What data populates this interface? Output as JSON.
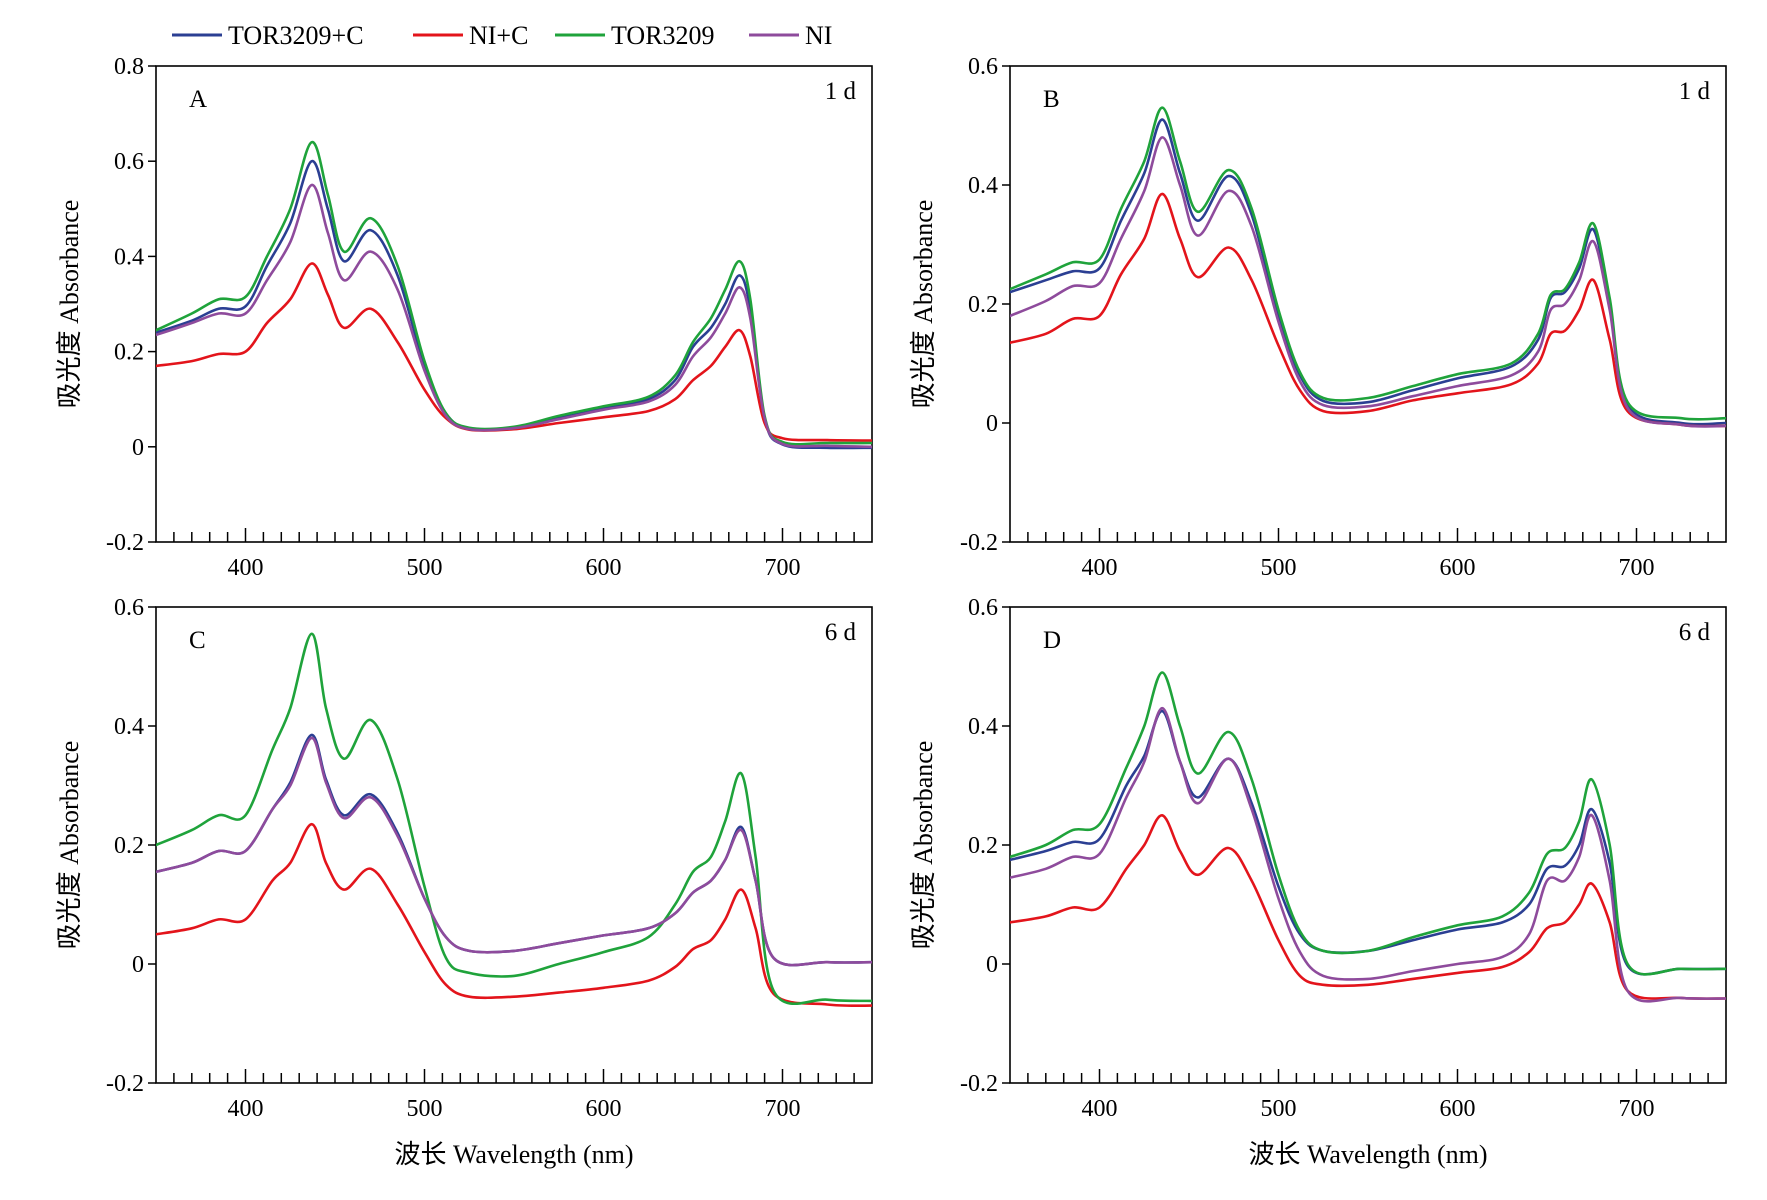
{
  "legend": [
    {
      "name": "TOR3209+C",
      "color": "#2b3f93"
    },
    {
      "name": "NI+C",
      "color": "#e3141b"
    },
    {
      "name": "TOR3209",
      "color": "#1fa33b"
    },
    {
      "name": "NI",
      "color": "#8e4b9c"
    }
  ],
  "chart_data": [
    {
      "type": "line",
      "panel": "A",
      "label": "1 d",
      "xlim": [
        350,
        750
      ],
      "ylim": [
        -0.2,
        0.8
      ],
      "xticks": [
        400,
        500,
        600,
        700
      ],
      "yticks": [
        -0.2,
        0,
        0.2,
        0.4,
        0.6,
        0.8
      ],
      "ytick_labels": [
        "-0.2",
        "0",
        "0.2",
        "0.4",
        "0.6",
        "0.8"
      ],
      "xlabel": "",
      "ylabel": "吸光度 Absorbance",
      "x": [
        350,
        370,
        385,
        400,
        412,
        425,
        437,
        446,
        455,
        470,
        485,
        500,
        512,
        525,
        550,
        575,
        600,
        625,
        640,
        650,
        660,
        668,
        676,
        682,
        690,
        700,
        725,
        750
      ],
      "series": [
        {
          "name": "TOR3209+C",
          "values": [
            0.24,
            0.265,
            0.29,
            0.295,
            0.38,
            0.47,
            0.6,
            0.5,
            0.39,
            0.455,
            0.36,
            0.17,
            0.07,
            0.038,
            0.04,
            0.06,
            0.08,
            0.1,
            0.14,
            0.21,
            0.25,
            0.3,
            0.36,
            0.29,
            0.06,
            0.005,
            -0.002,
            -0.002
          ]
        },
        {
          "name": "NI+C",
          "values": [
            0.17,
            0.18,
            0.195,
            0.2,
            0.26,
            0.31,
            0.385,
            0.32,
            0.25,
            0.29,
            0.22,
            0.12,
            0.06,
            0.036,
            0.037,
            0.05,
            0.062,
            0.075,
            0.1,
            0.14,
            0.17,
            0.21,
            0.245,
            0.19,
            0.05,
            0.018,
            0.014,
            0.013
          ]
        },
        {
          "name": "TOR3209",
          "values": [
            0.245,
            0.28,
            0.31,
            0.315,
            0.4,
            0.5,
            0.64,
            0.53,
            0.41,
            0.48,
            0.38,
            0.18,
            0.07,
            0.04,
            0.042,
            0.065,
            0.085,
            0.105,
            0.15,
            0.22,
            0.27,
            0.33,
            0.39,
            0.31,
            0.065,
            0.01,
            0.008,
            0.008
          ]
        },
        {
          "name": "NI",
          "values": [
            0.235,
            0.26,
            0.28,
            0.28,
            0.35,
            0.43,
            0.55,
            0.45,
            0.35,
            0.41,
            0.33,
            0.16,
            0.065,
            0.037,
            0.039,
            0.058,
            0.078,
            0.095,
            0.13,
            0.19,
            0.23,
            0.28,
            0.335,
            0.27,
            0.06,
            0.006,
            0.002,
            0.0
          ]
        }
      ]
    },
    {
      "type": "line",
      "panel": "B",
      "label": "1 d",
      "xlim": [
        350,
        750
      ],
      "ylim": [
        -0.2,
        0.6
      ],
      "xticks": [
        400,
        500,
        600,
        700
      ],
      "yticks": [
        -0.2,
        0,
        0.2,
        0.4,
        0.6
      ],
      "ytick_labels": [
        "-0.2",
        "0",
        "0.2",
        "0.4",
        "0.6"
      ],
      "xlabel": "",
      "ylabel": "吸光度 Absorbance",
      "x": [
        350,
        370,
        385,
        400,
        412,
        425,
        435,
        445,
        455,
        472,
        485,
        500,
        512,
        525,
        550,
        575,
        600,
        630,
        645,
        652,
        660,
        668,
        676,
        685,
        695,
        725,
        750
      ],
      "series": [
        {
          "name": "TOR3209+C",
          "values": [
            0.22,
            0.24,
            0.255,
            0.26,
            0.34,
            0.42,
            0.51,
            0.42,
            0.34,
            0.415,
            0.35,
            0.18,
            0.08,
            0.037,
            0.035,
            0.055,
            0.075,
            0.095,
            0.14,
            0.21,
            0.22,
            0.26,
            0.325,
            0.2,
            0.03,
            0.0,
            0.0
          ]
        },
        {
          "name": "NI+C",
          "values": [
            0.135,
            0.15,
            0.175,
            0.18,
            0.25,
            0.31,
            0.385,
            0.31,
            0.245,
            0.295,
            0.24,
            0.13,
            0.055,
            0.02,
            0.02,
            0.038,
            0.05,
            0.065,
            0.1,
            0.15,
            0.155,
            0.19,
            0.24,
            0.14,
            0.02,
            -0.003,
            -0.005
          ]
        },
        {
          "name": "TOR3209",
          "values": [
            0.225,
            0.25,
            0.27,
            0.275,
            0.36,
            0.44,
            0.53,
            0.44,
            0.355,
            0.425,
            0.36,
            0.19,
            0.085,
            0.042,
            0.042,
            0.062,
            0.082,
            0.1,
            0.15,
            0.215,
            0.225,
            0.27,
            0.335,
            0.21,
            0.035,
            0.008,
            0.008
          ]
        },
        {
          "name": "NI",
          "values": [
            0.18,
            0.205,
            0.23,
            0.235,
            0.31,
            0.39,
            0.48,
            0.4,
            0.315,
            0.39,
            0.33,
            0.17,
            0.07,
            0.03,
            0.028,
            0.045,
            0.062,
            0.08,
            0.12,
            0.19,
            0.2,
            0.24,
            0.305,
            0.19,
            0.025,
            -0.003,
            -0.005
          ]
        }
      ]
    },
    {
      "type": "line",
      "panel": "C",
      "label": "6 d",
      "xlim": [
        350,
        750
      ],
      "ylim": [
        -0.2,
        0.6
      ],
      "xticks": [
        400,
        500,
        600,
        700
      ],
      "yticks": [
        -0.2,
        0,
        0.2,
        0.4,
        0.6
      ],
      "ytick_labels": [
        "-0.2",
        "0",
        "0.2",
        "0.4",
        "0.6"
      ],
      "xlabel": "波长 Wavelength (nm)",
      "ylabel": "吸光度 Absorbance",
      "x": [
        350,
        370,
        385,
        400,
        415,
        425,
        437,
        445,
        455,
        470,
        485,
        500,
        512,
        525,
        550,
        575,
        600,
        625,
        640,
        650,
        660,
        668,
        677,
        685,
        695,
        725,
        750
      ],
      "series": [
        {
          "name": "TOR3209+C",
          "values": [
            0.155,
            0.17,
            0.19,
            0.19,
            0.26,
            0.305,
            0.385,
            0.31,
            0.25,
            0.285,
            0.22,
            0.11,
            0.045,
            0.022,
            0.022,
            0.035,
            0.048,
            0.06,
            0.085,
            0.12,
            0.14,
            0.175,
            0.23,
            0.14,
            0.01,
            0.003,
            0.003
          ]
        },
        {
          "name": "NI+C",
          "values": [
            0.05,
            0.06,
            0.075,
            0.075,
            0.14,
            0.17,
            0.235,
            0.17,
            0.125,
            0.16,
            0.1,
            0.02,
            -0.035,
            -0.055,
            -0.055,
            -0.048,
            -0.04,
            -0.028,
            -0.005,
            0.025,
            0.04,
            0.075,
            0.125,
            0.06,
            -0.05,
            -0.068,
            -0.07
          ]
        },
        {
          "name": "TOR3209",
          "values": [
            0.2,
            0.225,
            0.25,
            0.25,
            0.36,
            0.43,
            0.555,
            0.43,
            0.345,
            0.41,
            0.31,
            0.13,
            0.01,
            -0.015,
            -0.02,
            0.0,
            0.02,
            0.045,
            0.1,
            0.155,
            0.18,
            0.24,
            0.32,
            0.18,
            -0.045,
            -0.06,
            -0.062
          ]
        },
        {
          "name": "NI",
          "values": [
            0.155,
            0.17,
            0.19,
            0.19,
            0.26,
            0.3,
            0.38,
            0.305,
            0.245,
            0.28,
            0.215,
            0.11,
            0.045,
            0.022,
            0.022,
            0.035,
            0.048,
            0.06,
            0.085,
            0.12,
            0.14,
            0.175,
            0.225,
            0.14,
            0.01,
            0.003,
            0.003
          ]
        }
      ]
    },
    {
      "type": "line",
      "panel": "D",
      "label": "6 d",
      "xlim": [
        350,
        750
      ],
      "ylim": [
        -0.2,
        0.6
      ],
      "xticks": [
        400,
        500,
        600,
        700
      ],
      "yticks": [
        -0.2,
        0,
        0.2,
        0.4,
        0.6
      ],
      "ytick_labels": [
        "-0.2",
        "0",
        "0.2",
        "0.4",
        "0.6"
      ],
      "xlabel": "波长 Wavelength (nm)",
      "ylabel": "吸光度 Absorbance",
      "x": [
        350,
        370,
        385,
        400,
        415,
        425,
        435,
        445,
        455,
        472,
        485,
        500,
        512,
        525,
        550,
        575,
        600,
        625,
        640,
        650,
        660,
        668,
        675,
        685,
        695,
        725,
        750
      ],
      "series": [
        {
          "name": "TOR3209+C",
          "values": [
            0.175,
            0.19,
            0.205,
            0.21,
            0.3,
            0.35,
            0.425,
            0.34,
            0.28,
            0.345,
            0.27,
            0.13,
            0.05,
            0.022,
            0.022,
            0.04,
            0.058,
            0.07,
            0.1,
            0.16,
            0.165,
            0.2,
            0.26,
            0.17,
            -0.003,
            -0.008,
            -0.008
          ]
        },
        {
          "name": "NI+C",
          "values": [
            0.07,
            0.08,
            0.095,
            0.095,
            0.16,
            0.2,
            0.25,
            0.19,
            0.15,
            0.195,
            0.14,
            0.04,
            -0.02,
            -0.035,
            -0.035,
            -0.025,
            -0.015,
            -0.005,
            0.02,
            0.06,
            0.07,
            0.1,
            0.135,
            0.07,
            -0.045,
            -0.057,
            -0.058
          ]
        },
        {
          "name": "TOR3209",
          "values": [
            0.18,
            0.2,
            0.225,
            0.235,
            0.33,
            0.4,
            0.49,
            0.4,
            0.32,
            0.39,
            0.31,
            0.15,
            0.055,
            0.022,
            0.022,
            0.045,
            0.065,
            0.08,
            0.12,
            0.185,
            0.195,
            0.24,
            0.31,
            0.2,
            0.0,
            -0.008,
            -0.008
          ]
        },
        {
          "name": "NI",
          "values": [
            0.145,
            0.16,
            0.18,
            0.185,
            0.28,
            0.34,
            0.43,
            0.34,
            0.27,
            0.345,
            0.26,
            0.11,
            0.02,
            -0.02,
            -0.025,
            -0.012,
            0.0,
            0.012,
            0.05,
            0.14,
            0.14,
            0.18,
            0.25,
            0.14,
            -0.045,
            -0.057,
            -0.058
          ]
        }
      ]
    }
  ]
}
